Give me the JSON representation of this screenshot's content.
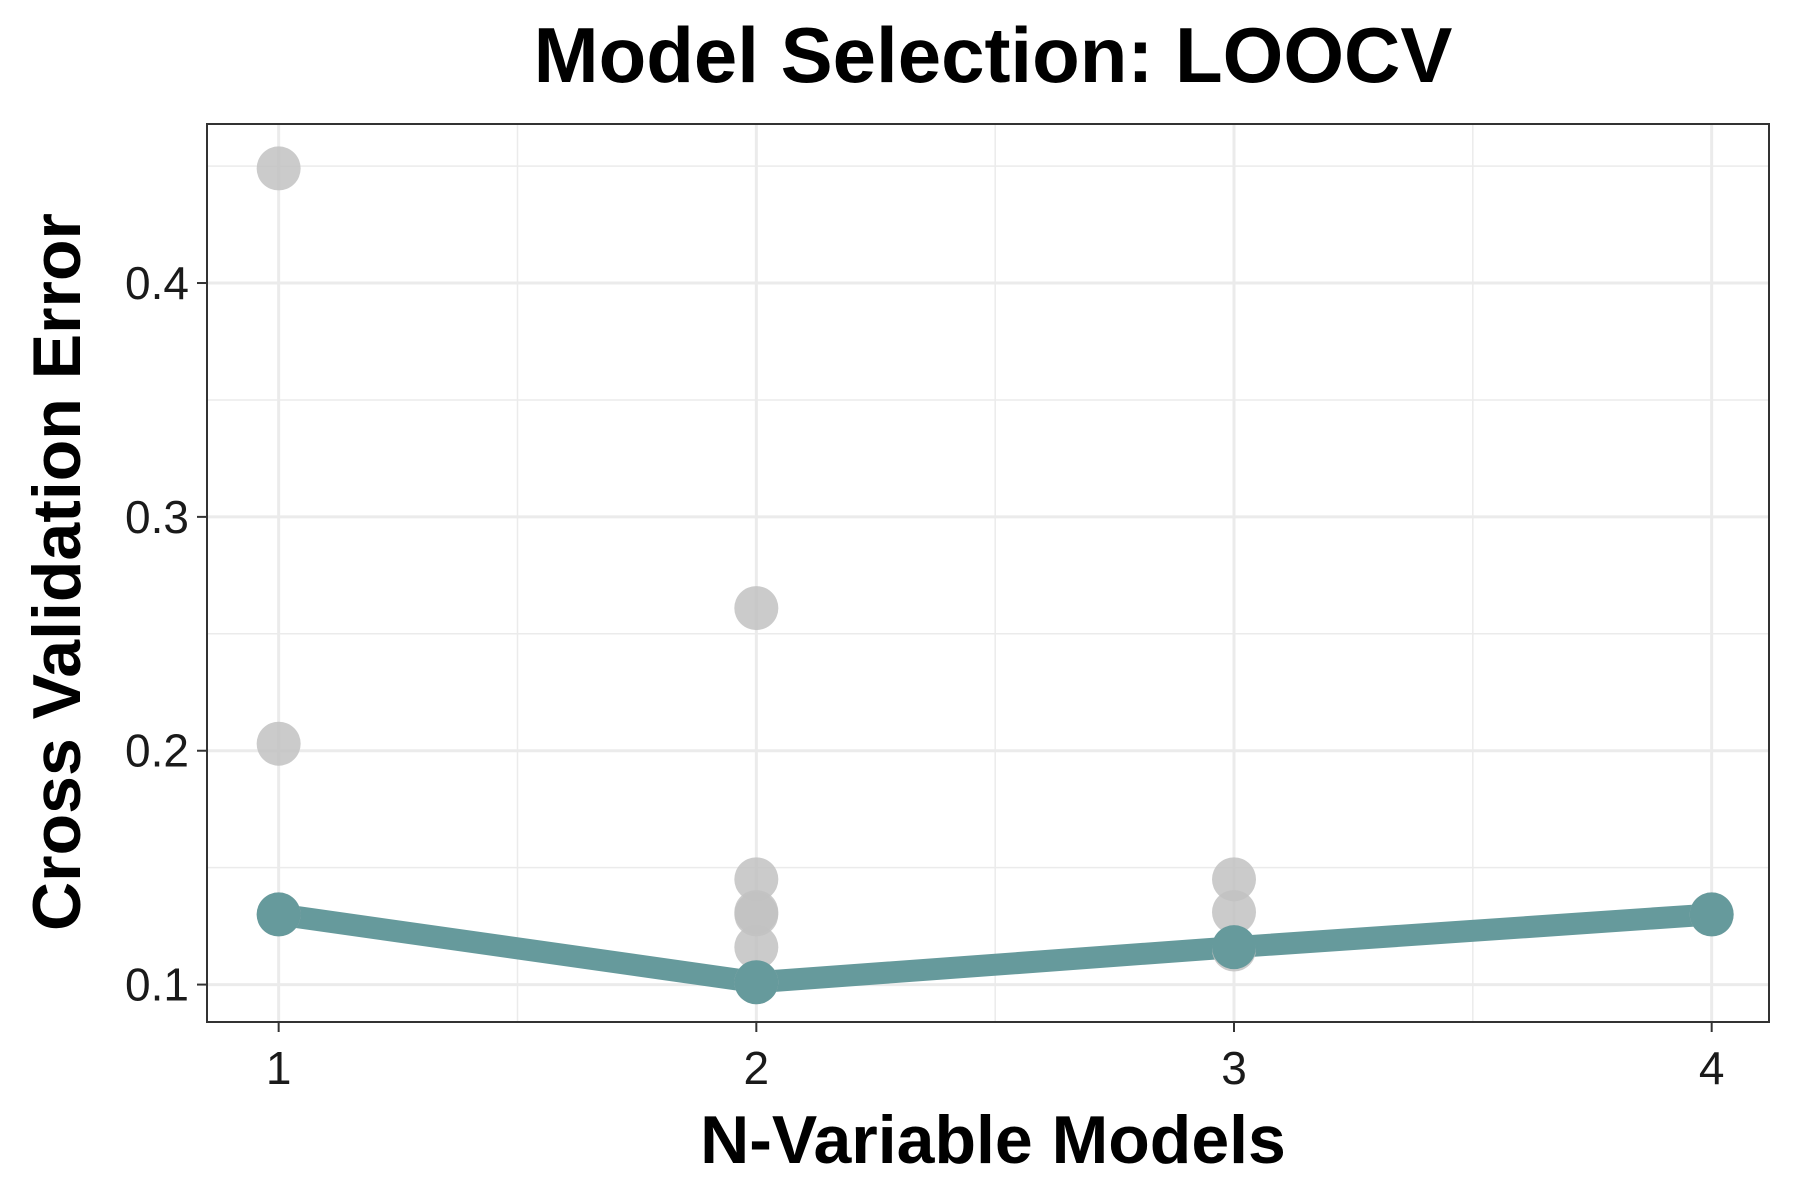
{
  "chart_data": {
    "type": "line",
    "title": "Model Selection: LOOCV",
    "xlabel": "N-Variable Models",
    "ylabel": "Cross Validation Error",
    "x_ticks": [
      "1",
      "2",
      "3",
      "4"
    ],
    "y_ticks": [
      "0.1",
      "0.2",
      "0.3",
      "0.4"
    ],
    "xlim": [
      0.85,
      4.12
    ],
    "ylim": [
      0.084,
      0.468
    ],
    "grid": true,
    "legend": "none",
    "series": [
      {
        "role": "candidate-models",
        "style": "points",
        "points": [
          {
            "x": 1,
            "y": 0.449
          },
          {
            "x": 1,
            "y": 0.203
          },
          {
            "x": 1,
            "y": 0.13
          },
          {
            "x": 2,
            "y": 0.261
          },
          {
            "x": 2,
            "y": 0.145
          },
          {
            "x": 2,
            "y": 0.131
          },
          {
            "x": 2,
            "y": 0.13
          },
          {
            "x": 2,
            "y": 0.116
          },
          {
            "x": 2,
            "y": 0.101
          },
          {
            "x": 3,
            "y": 0.145
          },
          {
            "x": 3,
            "y": 0.131
          },
          {
            "x": 3,
            "y": 0.115
          },
          {
            "x": 4,
            "y": 0.13
          }
        ]
      },
      {
        "role": "best-model",
        "style": "line-and-points",
        "points": [
          {
            "x": 1,
            "y": 0.13
          },
          {
            "x": 2,
            "y": 0.101
          },
          {
            "x": 3,
            "y": 0.116
          },
          {
            "x": 4,
            "y": 0.13
          }
        ]
      }
    ],
    "colors": {
      "best": "#669a9c",
      "candidates": "#c2c2c2",
      "grid": "#ebebeb",
      "panel_border": "#333333"
    }
  }
}
